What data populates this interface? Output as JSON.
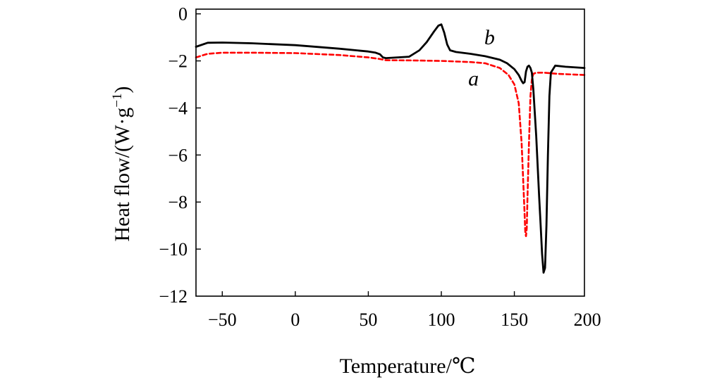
{
  "chart_data": {
    "type": "line",
    "title": "",
    "xlabel": "Temperature/℃",
    "ylabel_main": "Heat flow/(W·g",
    "ylabel_sup": "−1",
    "ylabel_close": ")",
    "xlim": [
      -68,
      198
    ],
    "ylim": [
      -12,
      0.2
    ],
    "xticks": [
      -50,
      0,
      50,
      100,
      150,
      200
    ],
    "xtick_labels": [
      "−50",
      "0",
      "50",
      "100",
      "150",
      "200"
    ],
    "yticks": [
      0,
      -2,
      -4,
      -6,
      -8,
      -10,
      -12
    ],
    "ytick_labels": [
      "0",
      "−2",
      "−4",
      "−6",
      "−8",
      "−10",
      "−12"
    ],
    "series": [
      {
        "name": "a",
        "color": "#ff0000",
        "dash": "dashed",
        "label_x": 122,
        "label_y": -2.75,
        "x": [
          -68,
          -60,
          -50,
          -30,
          0,
          30,
          50,
          58,
          62,
          80,
          100,
          120,
          130,
          140,
          146,
          150,
          153,
          155,
          156,
          157,
          157.5,
          158,
          158.5,
          159,
          160,
          161,
          162,
          163,
          165,
          170,
          180,
          198
        ],
        "y": [
          -1.85,
          -1.7,
          -1.65,
          -1.65,
          -1.67,
          -1.75,
          -1.85,
          -1.92,
          -1.97,
          -1.98,
          -2.0,
          -2.05,
          -2.1,
          -2.3,
          -2.6,
          -3.0,
          -3.8,
          -5.5,
          -7.0,
          -8.5,
          -9.3,
          -9.45,
          -9.1,
          -7.8,
          -5.5,
          -3.5,
          -2.8,
          -2.55,
          -2.5,
          -2.5,
          -2.55,
          -2.6
        ]
      },
      {
        "name": "b",
        "color": "#000000",
        "dash": "solid",
        "label_x": 133,
        "label_y": -1.0,
        "x": [
          -68,
          -60,
          -50,
          -30,
          0,
          30,
          50,
          55,
          58,
          60,
          62,
          70,
          78,
          85,
          90,
          95,
          98,
          100,
          102,
          104,
          106,
          110,
          120,
          130,
          140,
          145,
          150,
          153,
          155,
          156,
          157,
          158,
          159,
          160,
          161,
          162,
          163,
          165,
          166,
          167,
          168,
          169,
          170,
          171,
          172,
          173,
          174,
          175,
          178,
          185,
          198
        ],
        "y": [
          -1.4,
          -1.23,
          -1.22,
          -1.25,
          -1.33,
          -1.48,
          -1.6,
          -1.65,
          -1.72,
          -1.85,
          -1.88,
          -1.85,
          -1.82,
          -1.55,
          -1.2,
          -0.75,
          -0.5,
          -0.45,
          -0.8,
          -1.3,
          -1.55,
          -1.62,
          -1.7,
          -1.8,
          -1.95,
          -2.1,
          -2.35,
          -2.6,
          -2.85,
          -2.95,
          -2.9,
          -2.45,
          -2.25,
          -2.2,
          -2.3,
          -2.5,
          -3.2,
          -5.2,
          -6.5,
          -7.8,
          -9.0,
          -10.2,
          -11.0,
          -10.8,
          -9.0,
          -6.0,
          -3.5,
          -2.5,
          -2.2,
          -2.25,
          -2.3
        ]
      }
    ]
  }
}
